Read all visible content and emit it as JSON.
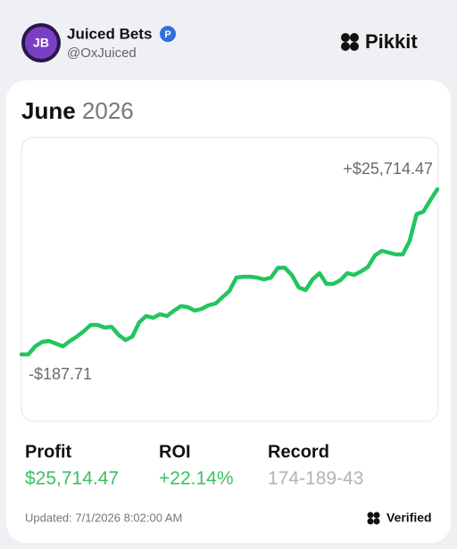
{
  "header": {
    "avatar": "JB",
    "name": "Juiced Bets",
    "handle": "@OxJuiced",
    "brand": "Pikkit"
  },
  "card": {
    "month": "June",
    "year": "2026"
  },
  "chart_data": {
    "type": "line",
    "color": "#22c55e",
    "values": [
      -187.71,
      -187.71,
      1072,
      1772,
      1912,
      1492,
      1072,
      1912,
      2612,
      3452,
      4432,
      4432,
      4012,
      4152,
      2892,
      2052,
      2612,
      4852,
      5832,
      5552,
      6112,
      5832,
      6672,
      7372,
      7232,
      6672,
      6952,
      7512,
      7792,
      8772,
      9752,
      11852,
      11992,
      11992,
      11852,
      11572,
      11852,
      13392,
      13392,
      12272,
      10312,
      9892,
      11572,
      12552,
      10872,
      10872,
      11432,
      12552,
      12272,
      12832,
      13532,
      15352,
      16052,
      15772,
      15492,
      15492,
      17592,
      21792,
      22212,
      24032,
      25714.47
    ],
    "annotations": [
      {
        "value": 25714.47,
        "label": "+$25,714.47"
      },
      {
        "value": -187.71,
        "label": "-$187.71"
      }
    ]
  },
  "stats": [
    {
      "label": "Profit",
      "value": "$25,714.47",
      "color": "#3cbf63"
    },
    {
      "label": "ROI",
      "value": "+22.14%",
      "color": "#3cbf63"
    },
    {
      "label": "Record",
      "value": "174-189-43",
      "color": "#b3b3b3"
    }
  ],
  "footer": {
    "updated": "Updated: 7/1/2026 8:02:00 AM",
    "verified": "Verified"
  }
}
